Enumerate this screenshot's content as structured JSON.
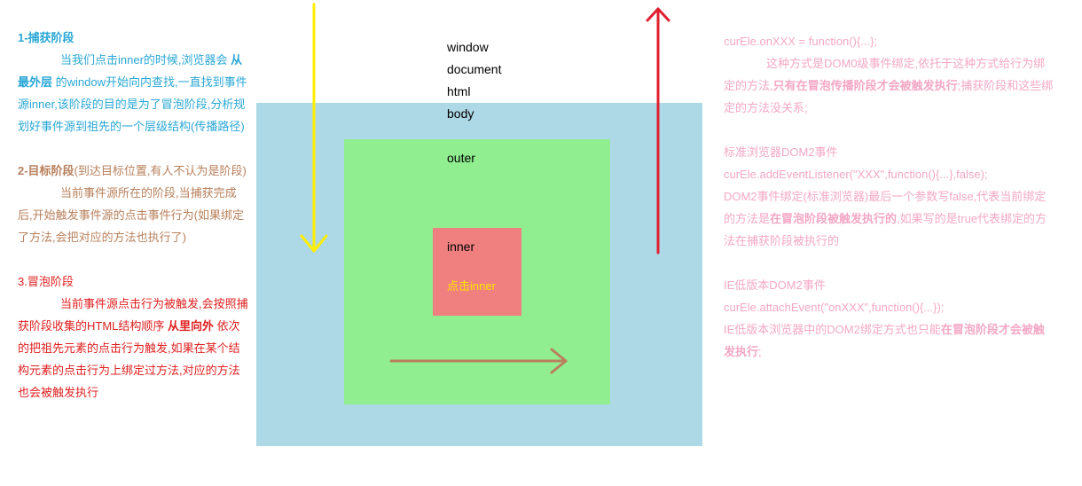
{
  "left": {
    "capture": {
      "heading": "1-捕获阶段",
      "text_1": "当我们点击inner的时候,浏览器会",
      "bold_1": "从最外层",
      "text_2": "的window开始向内查找,一直找到事件源inner,该阶段的目的是为了冒泡阶段,分析规划好事件源到祖先的一个层级结构(传播路径)"
    },
    "target": {
      "heading": "2-目标阶段",
      "heading_note": "(到达目标位置,有人不认为是阶段)",
      "text": "当前事件源所在的阶段,当捕获完成后,开始触发事件源的点击事件行为(如果绑定了方法,会把对应的方法也执行了)"
    },
    "bubble": {
      "heading": "3.冒泡阶段",
      "text_1": "当前事件源点击行为被触发,会按照捕获阶段收集的HTML结构顺序",
      "bold_1": "从里向外",
      "text_2": "依次的把祖先元素的点击行为触发,如果在某个结构元素的点击行为上绑定过方法,对应的方法也会被触发执行"
    }
  },
  "diagram": {
    "labels": {
      "window": "window",
      "document": "document",
      "html": "html",
      "body": "body",
      "outer": "outer",
      "inner": "inner",
      "click": "点击inner"
    },
    "colors": {
      "body_box": "#add8e6",
      "outer_box": "#90ee90",
      "inner_box": "#f08080",
      "capture_arrow": "#ffee00",
      "bubble_arrow": "#e02030",
      "target_arrow": "#b8805c"
    }
  },
  "right": {
    "dom0": {
      "code": "curEle.onXXX = function(){...};",
      "text_1": "这种方式是DOM0级事件绑定,依托于这种方式给行为绑定的方法,",
      "bold_1": "只有在冒泡传播阶段才会被触发执行",
      "text_2": ";捕获阶段和这些绑定的方法没关系;"
    },
    "dom2": {
      "title": "标准浏览器DOM2事件",
      "code": "curEle.addEventListener(\"XXX\",function(){...},false);",
      "text_1": "DOM2事件绑定(标准浏览器)最后一个参数写false,代表当前绑定的方法是",
      "bold_1": "在冒泡阶段被触发执行的",
      "text_2": ",如果写的是true代表绑定的方法在捕获阶段被执行的"
    },
    "ie": {
      "title": "IE低版本DOM2事件",
      "code": "curEle.attachEvent(\"onXXX\",function(){...});",
      "text_1": "IE低版本浏览器中的DOM2绑定方式也只能",
      "bold_1": "在冒泡阶段才会被触发执行",
      "text_2": ";"
    }
  }
}
